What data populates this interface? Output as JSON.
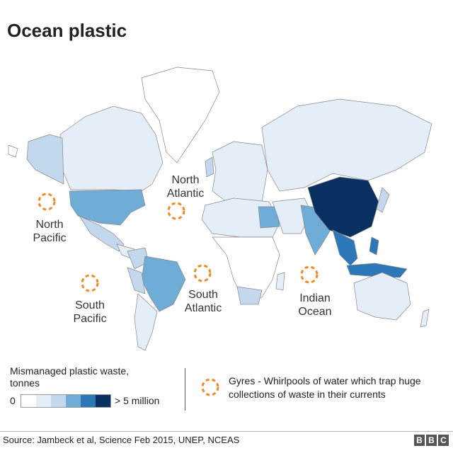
{
  "title": "Ocean plastic",
  "colors": {
    "scale": [
      "#ffffff",
      "#e4eef8",
      "#c3d8ec",
      "#6fadd6",
      "#2c77b8",
      "#0a3061"
    ],
    "gyre": "#f08a24"
  },
  "gyres": [
    {
      "line1": "North",
      "line2": "Pacific"
    },
    {
      "line1": "North",
      "line2": "Atlantic"
    },
    {
      "line1": "South",
      "line2": "Pacific"
    },
    {
      "line1": "South",
      "line2": "Atlantic"
    },
    {
      "line1": "Indian",
      "line2": "Ocean"
    }
  ],
  "legend": {
    "title": "Mismanaged plastic waste, tonnes",
    "min": "0",
    "max": "> 5 million",
    "gyre_text": "Gyres - Whirlpools of water which trap huge collections of waste in their currents"
  },
  "source": "Source: Jambeck et al, Science Feb 2015, UNEP, NCEAS",
  "logo": "BBC"
}
